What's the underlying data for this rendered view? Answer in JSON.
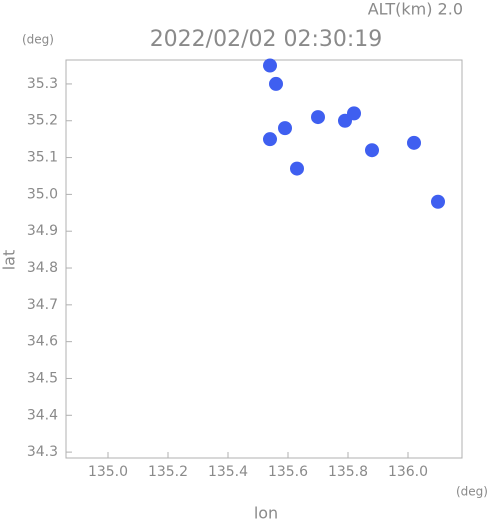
{
  "chart_data": {
    "type": "scatter",
    "title": "2022/02/02 02:30:19",
    "subtitle": "ALT(km) 2.0",
    "x_label": "lon",
    "y_label": "lat",
    "x_unit": "(deg)",
    "y_unit": "(deg)",
    "xlim": [
      134.86,
      136.18
    ],
    "ylim": [
      34.284,
      35.365
    ],
    "xticks": [
      {
        "value": 135.0,
        "label": "135.0"
      },
      {
        "value": 135.2,
        "label": "135.2"
      },
      {
        "value": 135.4,
        "label": "135.4"
      },
      {
        "value": 135.6,
        "label": "135.6"
      },
      {
        "value": 135.8,
        "label": "135.8"
      },
      {
        "value": 136.0,
        "label": "136.0"
      }
    ],
    "yticks": [
      {
        "value": 34.3,
        "label": "34.3"
      },
      {
        "value": 34.4,
        "label": "34.4"
      },
      {
        "value": 34.5,
        "label": "34.5"
      },
      {
        "value": 34.6,
        "label": "34.6"
      },
      {
        "value": 34.7,
        "label": "34.7"
      },
      {
        "value": 34.8,
        "label": "34.8"
      },
      {
        "value": 34.9,
        "label": "34.9"
      },
      {
        "value": 35.0,
        "label": "35.0"
      },
      {
        "value": 35.1,
        "label": "35.1"
      },
      {
        "value": 35.2,
        "label": "35.2"
      },
      {
        "value": 35.3,
        "label": "35.3"
      }
    ],
    "series": [
      {
        "color": "#3f5ff0",
        "x": [
          135.54,
          135.56,
          135.59,
          135.7,
          135.79,
          135.82,
          135.88,
          136.02,
          136.1,
          135.54,
          135.63
        ],
        "values": [
          35.35,
          35.3,
          35.18,
          35.21,
          35.2,
          35.22,
          35.12,
          35.14,
          34.98,
          35.15,
          35.07
        ]
      }
    ]
  }
}
